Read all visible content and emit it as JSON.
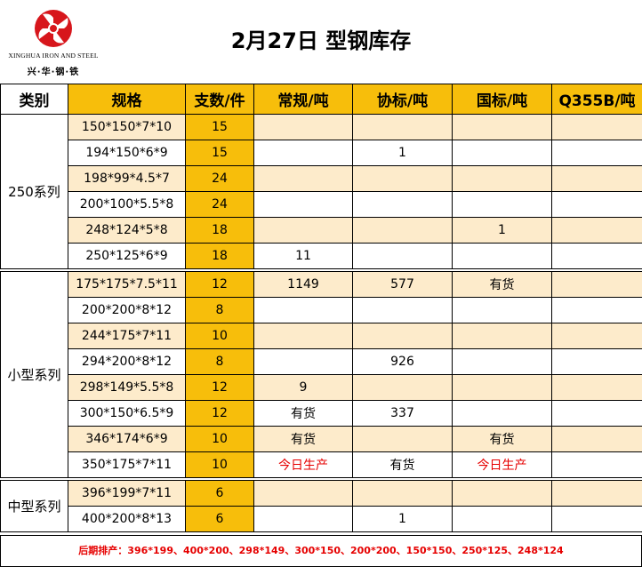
{
  "brand": {
    "name_en": "XINGHUA IRON AND STEEL",
    "name_cn": "兴·华·钢·铁",
    "logo_color": "#D7161C"
  },
  "title": "2月27日 型钢库存",
  "headers": [
    "类别",
    "规格",
    "支数/件",
    "常规/吨",
    "协标/吨",
    "国标/吨",
    "Q355B/吨"
  ],
  "colors": {
    "header_gold": "#F7BE0B",
    "band": "#FDEBCB",
    "red_text": "#E60000"
  },
  "groups": [
    {
      "category": "250系列",
      "rows": [
        {
          "spec": "150*150*7*10",
          "count": "15",
          "regular": "",
          "xiebiao": "",
          "guobiao": "",
          "q355b": ""
        },
        {
          "spec": "194*150*6*9",
          "count": "15",
          "regular": "",
          "xiebiao": "1",
          "guobiao": "",
          "q355b": ""
        },
        {
          "spec": "198*99*4.5*7",
          "count": "24",
          "regular": "",
          "xiebiao": "",
          "guobiao": "",
          "q355b": ""
        },
        {
          "spec": "200*100*5.5*8",
          "count": "24",
          "regular": "",
          "xiebiao": "",
          "guobiao": "",
          "q355b": ""
        },
        {
          "spec": "248*124*5*8",
          "count": "18",
          "regular": "",
          "xiebiao": "",
          "guobiao": "1",
          "q355b": ""
        },
        {
          "spec": "250*125*6*9",
          "count": "18",
          "regular": "11",
          "xiebiao": "",
          "guobiao": "",
          "q355b": ""
        }
      ]
    },
    {
      "category": "小型系列",
      "rows": [
        {
          "spec": "175*175*7.5*11",
          "count": "12",
          "regular": "1149",
          "xiebiao": "577",
          "guobiao": "有货",
          "q355b": ""
        },
        {
          "spec": "200*200*8*12",
          "count": "8",
          "regular": "",
          "xiebiao": "",
          "guobiao": "",
          "q355b": ""
        },
        {
          "spec": "244*175*7*11",
          "count": "10",
          "regular": "",
          "xiebiao": "",
          "guobiao": "",
          "q355b": ""
        },
        {
          "spec": "294*200*8*12",
          "count": "8",
          "regular": "",
          "xiebiao": "926",
          "guobiao": "",
          "q355b": ""
        },
        {
          "spec": "298*149*5.5*8",
          "count": "12",
          "regular": "9",
          "xiebiao": "",
          "guobiao": "",
          "q355b": ""
        },
        {
          "spec": "300*150*6.5*9",
          "count": "12",
          "regular": "有货",
          "xiebiao": "337",
          "guobiao": "",
          "q355b": ""
        },
        {
          "spec": "346*174*6*9",
          "count": "10",
          "regular": "有货",
          "xiebiao": "",
          "guobiao": "有货",
          "q355b": ""
        },
        {
          "spec": "350*175*7*11",
          "count": "10",
          "regular": "今日生产",
          "xiebiao": "有货",
          "guobiao": "今日生产",
          "q355b": ""
        }
      ]
    },
    {
      "category": "中型系列",
      "rows": [
        {
          "spec": "396*199*7*11",
          "count": "6",
          "regular": "",
          "xiebiao": "",
          "guobiao": "",
          "q355b": ""
        },
        {
          "spec": "400*200*8*13",
          "count": "6",
          "regular": "",
          "xiebiao": "1",
          "guobiao": "",
          "q355b": ""
        }
      ]
    }
  ],
  "footer": "后期排产：396*199、400*200、298*149、300*150、200*200、150*150、250*125、248*124"
}
